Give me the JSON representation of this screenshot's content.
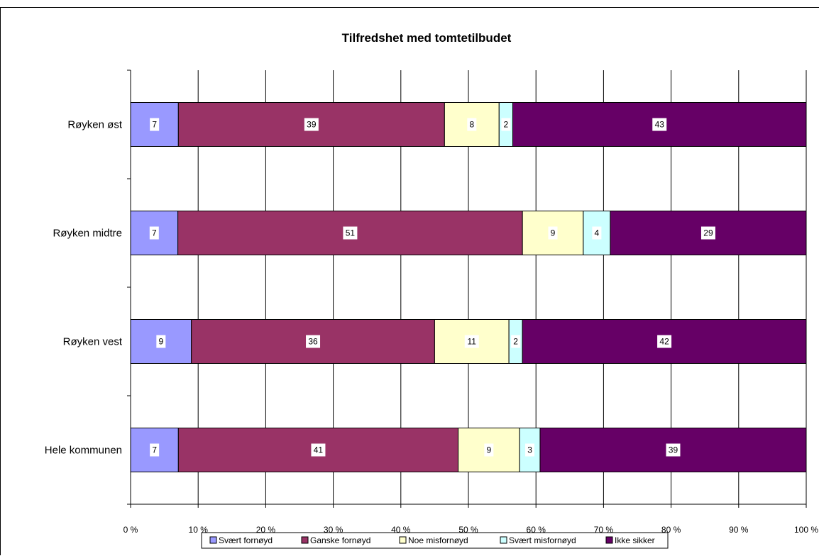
{
  "chart_data": {
    "type": "bar",
    "orientation": "horizontal",
    "stacked": "percent",
    "title": "Tilfredshet med tomtetilbudet",
    "xlabel": "",
    "ylabel": "",
    "categories": [
      "Røyken øst",
      "Røyken midtre",
      "Røyken vest",
      "Hele kommunen"
    ],
    "series": [
      {
        "name": "Svært fornøyd",
        "color": "#9999ff",
        "values": [
          7,
          7,
          9,
          7
        ]
      },
      {
        "name": "Ganske fornøyd",
        "color": "#993366",
        "values": [
          39,
          51,
          36,
          41
        ]
      },
      {
        "name": "Noe misfornøyd",
        "color": "#ffffcc",
        "values": [
          8,
          9,
          11,
          9
        ]
      },
      {
        "name": "Svært misfornøyd",
        "color": "#ccffff",
        "values": [
          2,
          4,
          2,
          3
        ]
      },
      {
        "name": "Ikke sikker",
        "color": "#660066",
        "values": [
          43,
          29,
          42,
          39
        ]
      }
    ],
    "xticks": [
      "0 %",
      "10 %",
      "20 %",
      "30 %",
      "40 %",
      "50 %",
      "60 %",
      "70 %",
      "80 %",
      "90 %",
      "100 %"
    ],
    "xlim": [
      0,
      100
    ],
    "grid": true,
    "legend": "bottom"
  }
}
